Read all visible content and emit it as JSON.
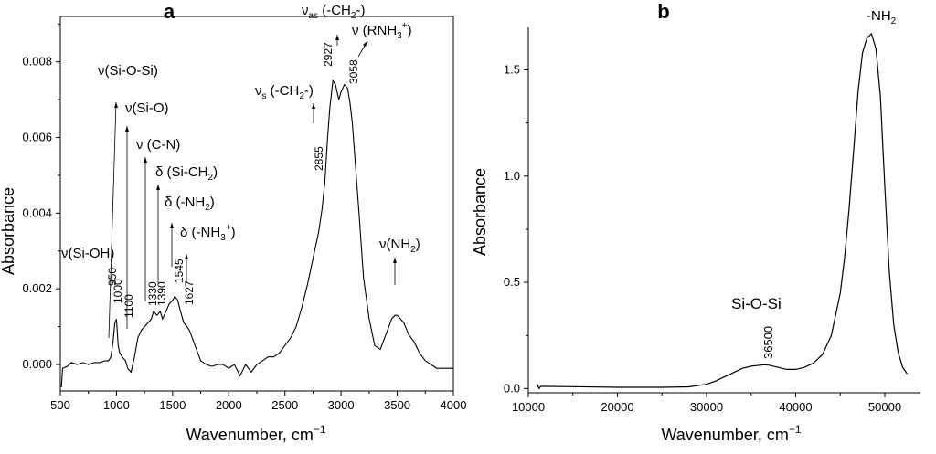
{
  "chart_data": [
    {
      "panel_label": "a",
      "type": "line",
      "xlabel": "Wavenumber, cm",
      "xlabel_sup": "−1",
      "ylabel": "Absorbance",
      "xlim": [
        500,
        4000
      ],
      "ylim": [
        -0.0007,
        0.0092
      ],
      "xticks": [
        500,
        1000,
        1500,
        2000,
        2500,
        3000,
        3500,
        4000
      ],
      "yticks": [
        0.0,
        0.002,
        0.004,
        0.006,
        0.008
      ],
      "ytick_labels": [
        "0.000",
        "0.002",
        "0.004",
        "0.006",
        "0.008"
      ],
      "series": [
        {
          "x": [
            510,
            520,
            560,
            600,
            650,
            700,
            750,
            800,
            850,
            900,
            930,
            950,
            970,
            985,
            1000,
            1015,
            1030,
            1050,
            1080,
            1100,
            1130,
            1160,
            1190,
            1220,
            1250,
            1280,
            1310,
            1330,
            1360,
            1390,
            1410,
            1440,
            1470,
            1500,
            1520,
            1545,
            1570,
            1600,
            1627,
            1650,
            1700,
            1750,
            1800,
            1850,
            1900,
            1950,
            2000,
            2050,
            2100,
            2150,
            2200,
            2250,
            2300,
            2350,
            2400,
            2450,
            2500,
            2550,
            2600,
            2650,
            2700,
            2750,
            2800,
            2830,
            2855,
            2880,
            2900,
            2927,
            2950,
            2980,
            3000,
            3030,
            3058,
            3080,
            3100,
            3130,
            3160,
            3200,
            3250,
            3300,
            3350,
            3400,
            3450,
            3480,
            3500,
            3530,
            3560,
            3600,
            3650,
            3700,
            3750,
            3800,
            3850,
            3900,
            3950,
            4000
          ],
          "y": [
            -0.0006,
            -0.0001,
            -5e-05,
            5e-05,
            0.0,
            5e-05,
            0.0,
            5e-05,
            5e-05,
            0.0001,
            0.0001,
            0.0002,
            0.0006,
            0.0011,
            0.0012,
            0.0005,
            0.0003,
            0.0002,
            0.0001,
            -0.0001,
            -0.0002,
            0.0002,
            0.0007,
            0.0009,
            0.001,
            0.0011,
            0.0012,
            0.0014,
            0.0013,
            0.0014,
            0.0012,
            0.0014,
            0.0016,
            0.0017,
            0.0018,
            0.0017,
            0.0014,
            0.0011,
            0.001,
            0.0009,
            0.0005,
            0.0001,
            0.0,
            -5e-05,
            0.0,
            0.0,
            -0.0001,
            0.0,
            -0.0003,
            0.0,
            -0.0002,
            0.0,
            0.0001,
            0.0002,
            0.0002,
            0.0003,
            0.0005,
            0.0007,
            0.001,
            0.0015,
            0.0021,
            0.0028,
            0.0035,
            0.0041,
            0.0048,
            0.006,
            0.0068,
            0.0075,
            0.0074,
            0.007,
            0.0072,
            0.0074,
            0.0073,
            0.0069,
            0.0064,
            0.0052,
            0.004,
            0.0023,
            0.0012,
            0.0005,
            0.0004,
            0.0008,
            0.0012,
            0.0013,
            0.0013,
            0.0012,
            0.0011,
            0.0008,
            0.0006,
            0.0003,
            0.0001,
            0.0,
            -0.0001,
            -0.0001,
            -0.0001,
            -0.0001
          ]
        }
      ],
      "peak_labels": [
        "950",
        "1000",
        "1100",
        "1330",
        "1390",
        "1545",
        "1627",
        "2855",
        "2927",
        "3058"
      ],
      "annotations": [
        {
          "text": "ν(Si-OH)"
        },
        {
          "text": "ν(Si-O-Si)"
        },
        {
          "text": "ν(Si-O)"
        },
        {
          "text": "ν (C-N)"
        },
        {
          "text": "δ (Si-CH",
          "sub": "2",
          "tail": ")"
        },
        {
          "text": "δ (-NH",
          "sub": "2",
          "tail": ")"
        },
        {
          "text": "δ (-NH",
          "sub": "3",
          "sup": "+",
          "tail": ")"
        },
        {
          "text": "ν",
          "sub_s": "s",
          "text2": " (-CH",
          "sub": "2",
          "tail": "-)"
        },
        {
          "text": "ν",
          "sub_s": "as",
          "text2": " (-CH",
          "sub": "2",
          "tail": "-)"
        },
        {
          "text": "ν (RNH",
          "sub": "3",
          "sup": "+",
          "tail": ")"
        },
        {
          "text": "ν(NH",
          "sub": "2",
          "tail": ")"
        }
      ]
    },
    {
      "panel_label": "b",
      "type": "line",
      "xlabel": "Wavenumber, cm",
      "xlabel_sup": "−1",
      "ylabel": "Absorbance",
      "xlim": [
        10000,
        54000
      ],
      "ylim": [
        -0.02,
        1.7
      ],
      "xticks": [
        10000,
        20000,
        30000,
        40000,
        50000
      ],
      "yticks": [
        0.0,
        0.5,
        1.0,
        1.5
      ],
      "ytick_labels": [
        "0.0",
        "0.5",
        "1.0",
        "1.5"
      ],
      "series": [
        {
          "x": [
            11000,
            11200,
            11400,
            12000,
            15000,
            20000,
            25000,
            28000,
            30000,
            31000,
            32000,
            33000,
            34000,
            35000,
            36000,
            36500,
            37000,
            38000,
            39000,
            40000,
            41000,
            42000,
            43000,
            44000,
            45000,
            45500,
            46000,
            46500,
            47000,
            47500,
            48000,
            48500,
            49000,
            49500,
            50000,
            50500,
            51000,
            51500,
            52000,
            52500
          ],
          "y": [
            0.02,
            0.0,
            0.01,
            0.01,
            0.009,
            0.006,
            0.006,
            0.008,
            0.02,
            0.035,
            0.055,
            0.075,
            0.095,
            0.105,
            0.11,
            0.112,
            0.11,
            0.1,
            0.09,
            0.09,
            0.1,
            0.12,
            0.16,
            0.25,
            0.45,
            0.62,
            0.85,
            1.12,
            1.4,
            1.58,
            1.65,
            1.67,
            1.6,
            1.38,
            0.95,
            0.55,
            0.3,
            0.17,
            0.1,
            0.07
          ]
        }
      ],
      "peak_labels": [
        "36500"
      ],
      "annotations": [
        {
          "text": "Si-O-Si"
        },
        {
          "text": "-NH",
          "sub": "2"
        }
      ]
    }
  ]
}
